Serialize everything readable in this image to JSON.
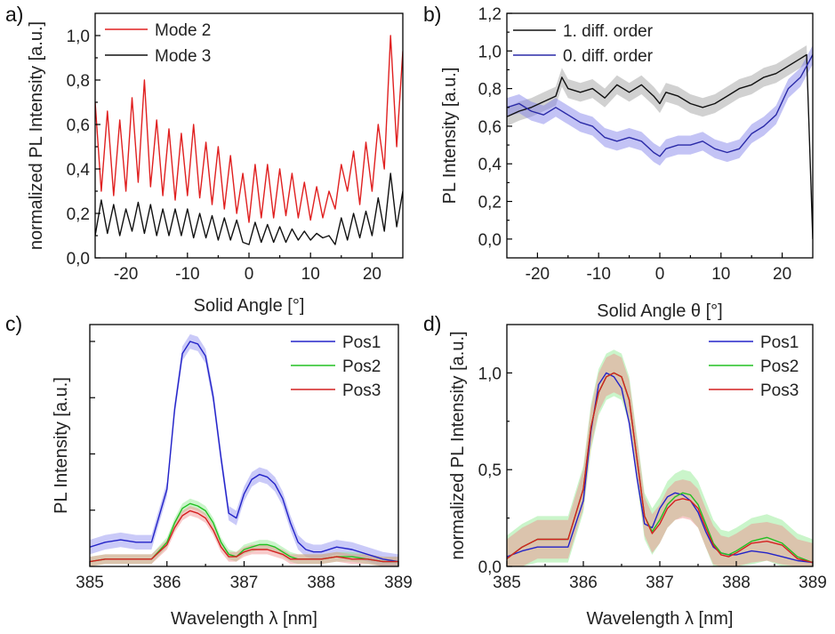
{
  "chart_data": [
    {
      "panel": "a)",
      "type": "line",
      "xlabel": "Solid Angle [°]",
      "ylabel": "normalized PL Intensity [a.u.]",
      "xlim": [
        -25,
        25
      ],
      "ylim": [
        0,
        1.1
      ],
      "xticks": [
        -20,
        -10,
        0,
        10,
        20
      ],
      "xtick_labels": [
        "-20",
        "-10",
        "0",
        "10",
        "20"
      ],
      "yticks": [
        0,
        0.2,
        0.4,
        0.6,
        0.8,
        1.0
      ],
      "ytick_labels": [
        "0,0",
        "0,2",
        "0,4",
        "0,6",
        "0,8",
        "1,0"
      ],
      "legend_position": "top-left",
      "series": [
        {
          "name": "Mode 2",
          "color": "#e02020",
          "x": [
            -25,
            -24,
            -23,
            -22,
            -21,
            -20,
            -19,
            -18,
            -17,
            -16,
            -15,
            -14,
            -13,
            -12,
            -11,
            -10,
            -9,
            -8,
            -7,
            -6,
            -5,
            -4,
            -3,
            -2,
            -1,
            0,
            1,
            2,
            3,
            4,
            5,
            6,
            7,
            8,
            9,
            10,
            11,
            12,
            13,
            14,
            15,
            16,
            17,
            18,
            19,
            20,
            21,
            22,
            23,
            24,
            25
          ],
          "y": [
            0.7,
            0.3,
            0.66,
            0.28,
            0.62,
            0.3,
            0.72,
            0.34,
            0.8,
            0.32,
            0.62,
            0.28,
            0.58,
            0.26,
            0.56,
            0.28,
            0.6,
            0.27,
            0.52,
            0.24,
            0.5,
            0.22,
            0.46,
            0.2,
            0.38,
            0.16,
            0.42,
            0.18,
            0.42,
            0.18,
            0.4,
            0.19,
            0.38,
            0.18,
            0.34,
            0.17,
            0.32,
            0.18,
            0.3,
            0.22,
            0.42,
            0.3,
            0.48,
            0.24,
            0.52,
            0.3,
            0.6,
            0.4,
            1.0,
            0.5,
            0.93
          ]
        },
        {
          "name": "Mode 3",
          "color": "#111111",
          "x": [
            -25,
            -24,
            -23,
            -22,
            -21,
            -20,
            -19,
            -18,
            -17,
            -16,
            -15,
            -14,
            -13,
            -12,
            -11,
            -10,
            -9,
            -8,
            -7,
            -6,
            -5,
            -4,
            -3,
            -2,
            -1,
            0,
            1,
            2,
            3,
            4,
            5,
            6,
            7,
            8,
            9,
            10,
            11,
            12,
            13,
            14,
            15,
            16,
            17,
            18,
            19,
            20,
            21,
            22,
            23,
            24,
            25
          ],
          "y": [
            0.1,
            0.26,
            0.11,
            0.24,
            0.1,
            0.22,
            0.12,
            0.25,
            0.11,
            0.24,
            0.1,
            0.22,
            0.1,
            0.22,
            0.1,
            0.22,
            0.09,
            0.2,
            0.09,
            0.19,
            0.08,
            0.18,
            0.08,
            0.17,
            0.07,
            0.06,
            0.16,
            0.07,
            0.15,
            0.07,
            0.14,
            0.07,
            0.13,
            0.08,
            0.12,
            0.08,
            0.11,
            0.09,
            0.1,
            0.06,
            0.18,
            0.08,
            0.2,
            0.09,
            0.21,
            0.1,
            0.27,
            0.12,
            0.38,
            0.14,
            0.3
          ]
        }
      ]
    },
    {
      "panel": "b)",
      "type": "line",
      "xlabel": "Solid Angle θ [°]",
      "ylabel": "PL Intensity [a.u.]",
      "xlim": [
        -25,
        25
      ],
      "ylim": [
        -0.1,
        1.2
      ],
      "xticks": [
        -20,
        -10,
        0,
        10,
        20
      ],
      "xtick_labels": [
        "-20",
        "-10",
        "0",
        "10",
        "20"
      ],
      "yticks": [
        0,
        0.2,
        0.4,
        0.6,
        0.8,
        1.0,
        1.2
      ],
      "ytick_labels": [
        "0,0",
        "0,2",
        "0,4",
        "0,6",
        "0,8",
        "1,0",
        "1,2"
      ],
      "legend_position": "top-left",
      "series": [
        {
          "name": "1. diff. order",
          "color": "#111111",
          "band_color": "#9a9a9a",
          "band": 0.05,
          "x": [
            -25,
            -23,
            -21,
            -19,
            -17,
            -16,
            -15,
            -13,
            -11,
            -9,
            -7,
            -5,
            -3,
            -1,
            0,
            1,
            3,
            5,
            7,
            9,
            11,
            13,
            15,
            17,
            19,
            21,
            23,
            24,
            25
          ],
          "y": [
            0.65,
            0.68,
            0.7,
            0.73,
            0.76,
            0.86,
            0.8,
            0.78,
            0.8,
            0.75,
            0.82,
            0.78,
            0.82,
            0.76,
            0.72,
            0.78,
            0.76,
            0.72,
            0.7,
            0.72,
            0.76,
            0.8,
            0.82,
            0.86,
            0.88,
            0.92,
            0.96,
            0.98,
            0.0
          ]
        },
        {
          "name": "0. diff. order",
          "color": "#2a2aa8",
          "band_color": "#7a7ae8",
          "band": 0.05,
          "x": [
            -25,
            -23,
            -21,
            -19,
            -17,
            -15,
            -13,
            -11,
            -9,
            -7,
            -5,
            -3,
            -1,
            0,
            1,
            3,
            5,
            7,
            9,
            11,
            13,
            15,
            17,
            19,
            21,
            23,
            25
          ],
          "y": [
            0.7,
            0.72,
            0.68,
            0.66,
            0.7,
            0.66,
            0.62,
            0.6,
            0.54,
            0.52,
            0.54,
            0.52,
            0.46,
            0.44,
            0.48,
            0.5,
            0.5,
            0.52,
            0.48,
            0.46,
            0.48,
            0.56,
            0.6,
            0.66,
            0.8,
            0.86,
            0.98
          ]
        }
      ]
    },
    {
      "panel": "c)",
      "type": "line",
      "xlabel": "Wavelength λ [nm]",
      "ylabel": "PL Intensity [a.u.]",
      "xlim": [
        385,
        389
      ],
      "ylim": [
        0,
        1
      ],
      "xticks": [
        385,
        386,
        387,
        388,
        389
      ],
      "xtick_labels": [
        "385",
        "386",
        "387",
        "388",
        "389"
      ],
      "yticks": [],
      "ytick_labels": [],
      "legend_position": "top-right",
      "series": [
        {
          "name": "Pos1",
          "color": "#2323c8",
          "band_color": "#8a8af0",
          "band": 0.03,
          "x": [
            385,
            385.2,
            385.4,
            385.6,
            385.8,
            386,
            386.1,
            386.2,
            386.3,
            386.4,
            386.5,
            386.6,
            386.7,
            386.8,
            386.9,
            387,
            387.1,
            387.2,
            387.3,
            387.4,
            387.5,
            387.6,
            387.7,
            387.8,
            387.9,
            388,
            388.2,
            388.4,
            388.6,
            388.8,
            389
          ],
          "y": [
            0.08,
            0.1,
            0.11,
            0.1,
            0.1,
            0.32,
            0.65,
            0.88,
            0.93,
            0.92,
            0.87,
            0.7,
            0.45,
            0.22,
            0.2,
            0.3,
            0.36,
            0.38,
            0.37,
            0.34,
            0.28,
            0.18,
            0.1,
            0.07,
            0.06,
            0.06,
            0.08,
            0.07,
            0.05,
            0.03,
            0.02
          ]
        },
        {
          "name": "Pos2",
          "color": "#22c022",
          "band_color": "#8ae88a",
          "band": 0.02,
          "x": [
            385,
            385.2,
            385.4,
            385.6,
            385.8,
            386,
            386.1,
            386.2,
            386.3,
            386.4,
            386.5,
            386.6,
            386.7,
            386.8,
            386.9,
            387,
            387.1,
            387.2,
            387.3,
            387.4,
            387.5,
            387.6,
            387.7,
            387.8,
            387.9,
            388,
            388.2,
            388.4,
            388.6,
            388.8,
            389
          ],
          "y": [
            0.02,
            0.03,
            0.03,
            0.03,
            0.03,
            0.1,
            0.18,
            0.24,
            0.26,
            0.25,
            0.23,
            0.18,
            0.1,
            0.05,
            0.04,
            0.07,
            0.08,
            0.09,
            0.09,
            0.08,
            0.06,
            0.04,
            0.03,
            0.03,
            0.03,
            0.03,
            0.04,
            0.04,
            0.03,
            0.02,
            0.02
          ]
        },
        {
          "name": "Pos3",
          "color": "#d42020",
          "band_color": "#f08a8a",
          "band": 0.02,
          "x": [
            385,
            385.2,
            385.4,
            385.6,
            385.8,
            386,
            386.1,
            386.2,
            386.3,
            386.4,
            386.5,
            386.6,
            386.7,
            386.8,
            386.9,
            387,
            387.1,
            387.2,
            387.3,
            387.4,
            387.5,
            387.6,
            387.7,
            387.8,
            387.9,
            388,
            388.2,
            388.4,
            388.6,
            388.8,
            389
          ],
          "y": [
            0.02,
            0.03,
            0.03,
            0.03,
            0.03,
            0.09,
            0.16,
            0.21,
            0.23,
            0.22,
            0.2,
            0.15,
            0.08,
            0.04,
            0.04,
            0.06,
            0.07,
            0.07,
            0.07,
            0.06,
            0.05,
            0.03,
            0.03,
            0.03,
            0.03,
            0.03,
            0.04,
            0.03,
            0.03,
            0.02,
            0.02
          ]
        }
      ]
    },
    {
      "panel": "d)",
      "type": "line",
      "xlabel": "Wavelength λ [nm]",
      "ylabel": "normalized PL Intensity [a.u.]",
      "xlim": [
        385,
        389
      ],
      "ylim": [
        0,
        1.25
      ],
      "xticks": [
        385,
        386,
        387,
        388,
        389
      ],
      "xtick_labels": [
        "385",
        "386",
        "387",
        "388",
        "389"
      ],
      "yticks": [
        0,
        0.5,
        1.0
      ],
      "ytick_labels": [
        "0,0",
        "0,5",
        "1,0"
      ],
      "legend_position": "top-right",
      "series": [
        {
          "name": "Pos1",
          "color": "#2323c8",
          "band_color": "#8a8af0",
          "band": 0.0,
          "x": [
            385,
            385.2,
            385.4,
            385.6,
            385.8,
            386,
            386.1,
            386.2,
            386.3,
            386.4,
            386.5,
            386.6,
            386.7,
            386.8,
            386.9,
            387,
            387.1,
            387.2,
            387.3,
            387.4,
            387.5,
            387.6,
            387.7,
            387.8,
            387.9,
            388,
            388.2,
            388.4,
            388.6,
            388.8,
            389
          ],
          "y": [
            0.05,
            0.08,
            0.1,
            0.1,
            0.1,
            0.34,
            0.7,
            0.94,
            1.0,
            0.98,
            0.92,
            0.74,
            0.46,
            0.22,
            0.2,
            0.3,
            0.36,
            0.38,
            0.37,
            0.34,
            0.28,
            0.18,
            0.1,
            0.07,
            0.06,
            0.06,
            0.08,
            0.07,
            0.05,
            0.03,
            0.02
          ]
        },
        {
          "name": "Pos2",
          "color": "#22c022",
          "band_color": "#8ae88a",
          "band": 0.12,
          "x": [
            385,
            385.2,
            385.4,
            385.6,
            385.8,
            386,
            386.1,
            386.2,
            386.3,
            386.4,
            386.5,
            386.6,
            386.7,
            386.8,
            386.9,
            387,
            387.1,
            387.2,
            387.3,
            387.4,
            387.5,
            387.6,
            387.7,
            387.8,
            387.9,
            388,
            388.2,
            388.4,
            388.6,
            388.8,
            389
          ],
          "y": [
            0.04,
            0.1,
            0.14,
            0.14,
            0.14,
            0.4,
            0.72,
            0.9,
            0.98,
            1.0,
            0.98,
            0.86,
            0.56,
            0.26,
            0.18,
            0.24,
            0.32,
            0.36,
            0.38,
            0.37,
            0.32,
            0.22,
            0.12,
            0.07,
            0.06,
            0.08,
            0.13,
            0.15,
            0.12,
            0.05,
            0.02
          ]
        },
        {
          "name": "Pos3",
          "color": "#d42020",
          "band_color": "#f08a8a",
          "band": 0.1,
          "x": [
            385,
            385.2,
            385.4,
            385.6,
            385.8,
            386,
            386.1,
            386.2,
            386.3,
            386.4,
            386.5,
            386.6,
            386.7,
            386.8,
            386.9,
            387,
            387.1,
            387.2,
            387.3,
            387.4,
            387.5,
            387.6,
            387.7,
            387.8,
            387.9,
            388,
            388.2,
            388.4,
            388.6,
            388.8,
            389
          ],
          "y": [
            0.04,
            0.1,
            0.14,
            0.14,
            0.14,
            0.4,
            0.72,
            0.9,
            0.98,
            1.0,
            0.98,
            0.86,
            0.56,
            0.26,
            0.17,
            0.22,
            0.3,
            0.34,
            0.35,
            0.34,
            0.3,
            0.2,
            0.11,
            0.06,
            0.05,
            0.07,
            0.12,
            0.13,
            0.11,
            0.04,
            0.02
          ]
        }
      ]
    }
  ]
}
